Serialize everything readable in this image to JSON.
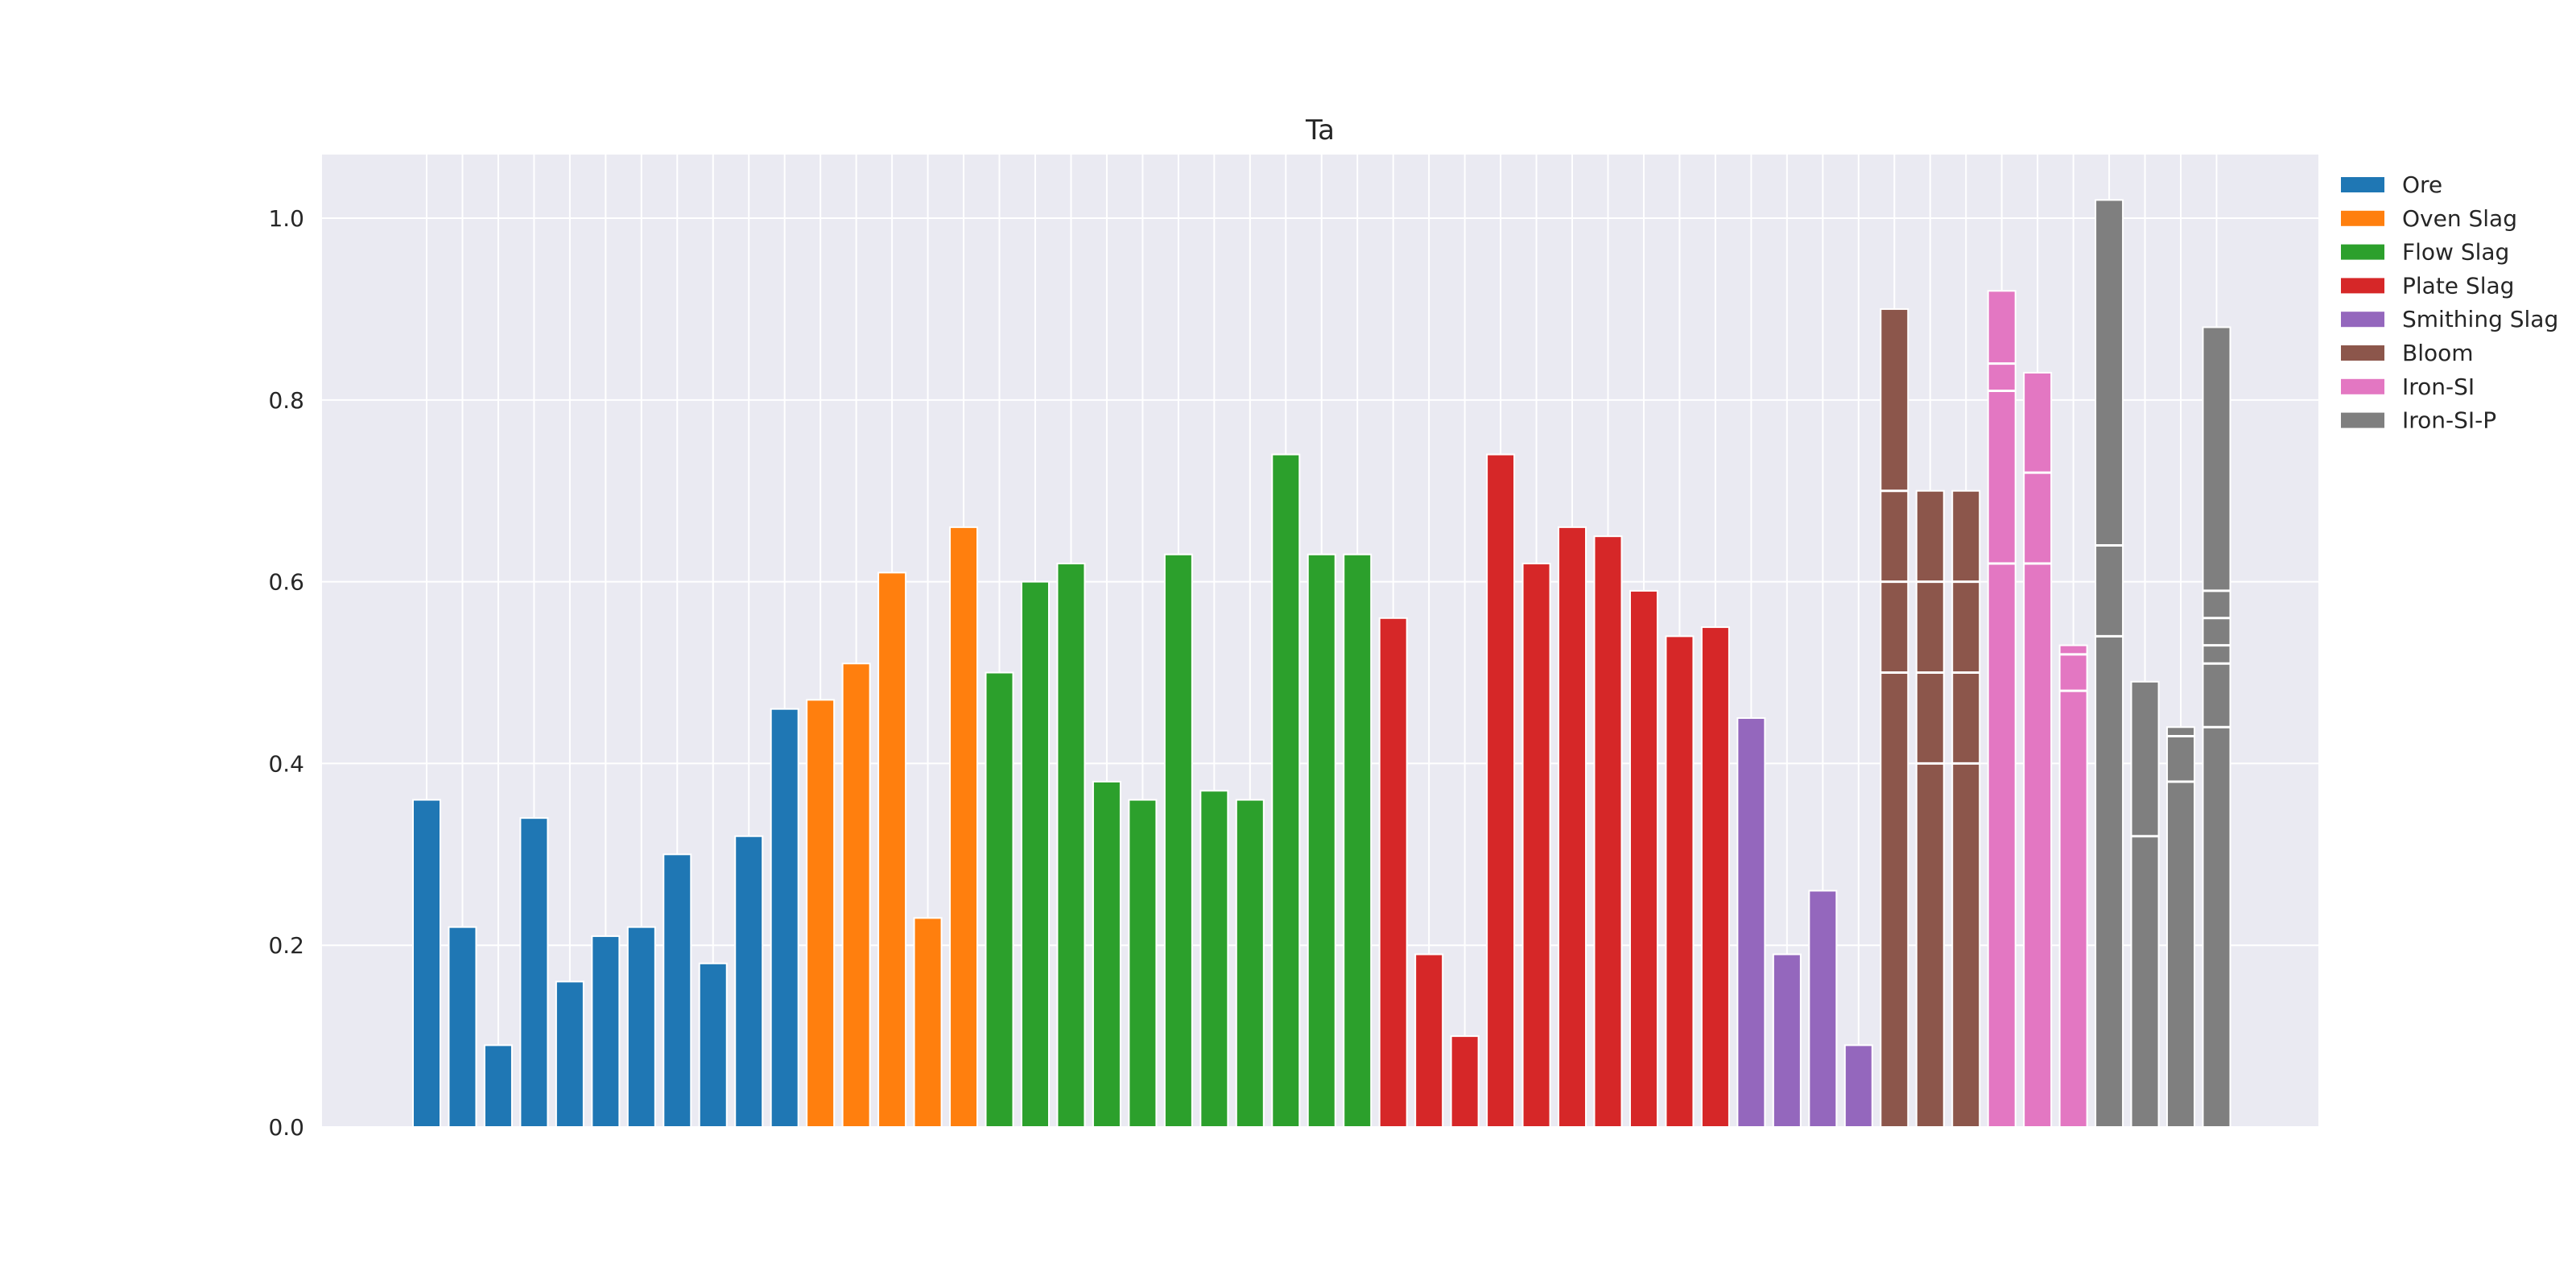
{
  "chart_data": {
    "type": "bar",
    "title": "Ta",
    "xlabel": "",
    "ylabel": "",
    "ylim": [
      0,
      1.07
    ],
    "yticks": [
      "0.0",
      "0.2",
      "0.4",
      "0.6",
      "0.8",
      "1.0"
    ],
    "ytick_values": [
      0,
      0.2,
      0.4,
      0.6,
      0.8,
      1.0
    ],
    "grid": true,
    "legend_position": "outside-top-right",
    "series": [
      {
        "name": "Ore",
        "color": "#1f77b4",
        "bars": [
          [
            0.36
          ],
          [
            0.22
          ],
          [
            0.09
          ],
          [
            0.34
          ],
          [
            0.16
          ],
          [
            0.21
          ],
          [
            0.22
          ],
          [
            0.3
          ],
          [
            0.18
          ],
          [
            0.32
          ],
          [
            0.46
          ]
        ]
      },
      {
        "name": "Oven Slag",
        "color": "#ff7f0e",
        "bars": [
          [
            0.47
          ],
          [
            0.51
          ],
          [
            0.61
          ],
          [
            0.23
          ],
          [
            0.66
          ]
        ]
      },
      {
        "name": "Flow Slag",
        "color": "#2ca02c",
        "bars": [
          [
            0.5
          ],
          [
            0.6
          ],
          [
            0.62
          ],
          [
            0.38
          ],
          [
            0.36
          ],
          [
            0.63
          ],
          [
            0.37
          ],
          [
            0.36
          ],
          [
            0.74
          ],
          [
            0.63
          ],
          [
            0.63
          ]
        ]
      },
      {
        "name": "Plate Slag",
        "color": "#d62728",
        "bars": [
          [
            0.56
          ],
          [
            0.19
          ],
          [
            0.1
          ],
          [
            0.74
          ],
          [
            0.62
          ],
          [
            0.66
          ],
          [
            0.65
          ],
          [
            0.59
          ],
          [
            0.54
          ],
          [
            0.55
          ]
        ]
      },
      {
        "name": "Smithing Slag",
        "color": "#9467bd",
        "bars": [
          [
            0.45
          ],
          [
            0.19
          ],
          [
            0.26
          ],
          [
            0.09
          ]
        ]
      },
      {
        "name": "Bloom",
        "color": "#8c564b",
        "bars": [
          [
            0.9,
            0.7,
            0.6,
            0.5
          ],
          [
            0.7,
            0.6,
            0.5,
            0.4
          ],
          [
            0.7,
            0.6,
            0.5,
            0.4
          ]
        ]
      },
      {
        "name": "Iron-SI",
        "color": "#e377c2",
        "bars": [
          [
            0.92,
            0.84,
            0.81,
            0.62
          ],
          [
            0.83,
            0.72,
            0.62
          ],
          [
            0.53,
            0.52,
            0.48
          ]
        ]
      },
      {
        "name": "Iron-SI-P",
        "color": "#7f7f7f",
        "bars": [
          [
            1.02,
            0.64,
            0.54
          ],
          [
            0.49,
            0.32
          ],
          [
            0.44,
            0.43,
            0.38
          ],
          [
            0.88,
            0.59,
            0.56,
            0.53,
            0.51,
            0.44
          ]
        ]
      }
    ]
  }
}
